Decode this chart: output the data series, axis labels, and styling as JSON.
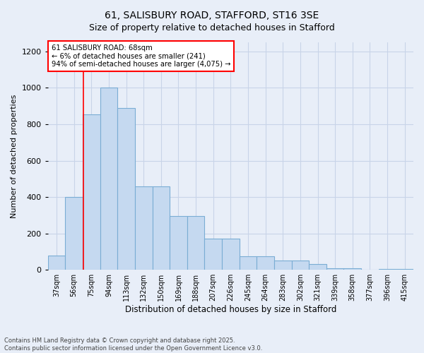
{
  "title_line1": "61, SALISBURY ROAD, STAFFORD, ST16 3SE",
  "title_line2": "Size of property relative to detached houses in Stafford",
  "xlabel": "Distribution of detached houses by size in Stafford",
  "ylabel": "Number of detached properties",
  "categories": [
    "37sqm",
    "56sqm",
    "75sqm",
    "94sqm",
    "113sqm",
    "132sqm",
    "150sqm",
    "169sqm",
    "188sqm",
    "207sqm",
    "226sqm",
    "245sqm",
    "264sqm",
    "283sqm",
    "302sqm",
    "321sqm",
    "339sqm",
    "358sqm",
    "377sqm",
    "396sqm",
    "415sqm"
  ],
  "values": [
    80,
    400,
    855,
    1000,
    890,
    460,
    460,
    295,
    295,
    170,
    170,
    75,
    75,
    50,
    50,
    30,
    7,
    7,
    0,
    3,
    3
  ],
  "bar_color": "#c5d9f0",
  "bar_edge_color": "#7aadd4",
  "annotation_text_line1": "61 SALISBURY ROAD: 68sqm",
  "annotation_text_line2": "← 6% of detached houses are smaller (241)",
  "annotation_text_line3": "94% of semi-detached houses are larger (4,075) →",
  "annotation_box_color": "white",
  "annotation_line_color": "red",
  "red_line_x": 1.55,
  "ylim": [
    0,
    1250
  ],
  "yticks": [
    0,
    200,
    400,
    600,
    800,
    1000,
    1200
  ],
  "grid_color": "#c8d4e8",
  "background_color": "#e8eef8",
  "plot_bg_color": "#e8eef8",
  "footer_line1": "Contains HM Land Registry data © Crown copyright and database right 2025.",
  "footer_line2": "Contains public sector information licensed under the Open Government Licence v3.0."
}
